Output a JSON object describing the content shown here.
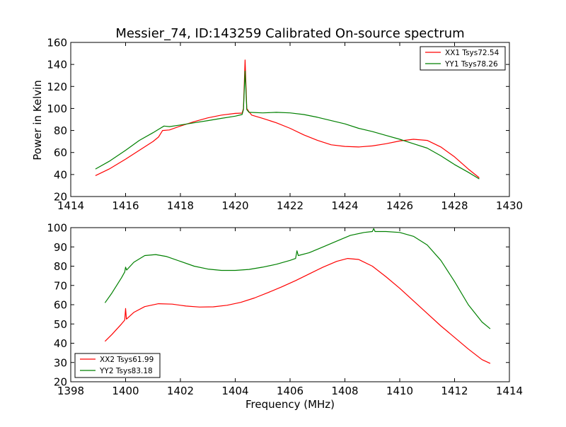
{
  "chart_data": [
    {
      "type": "line",
      "title": "Messier_74, ID:143259 Calibrated On-source spectrum",
      "xlabel": "",
      "ylabel": "Power in Kelvin",
      "xlim": [
        1414,
        1430
      ],
      "ylim": [
        20,
        160
      ],
      "xticks": [
        1414,
        1416,
        1418,
        1420,
        1422,
        1424,
        1426,
        1428,
        1430
      ],
      "yticks": [
        20,
        40,
        60,
        80,
        100,
        120,
        140,
        160
      ],
      "legend_position": "top-right",
      "series": [
        {
          "name": "XX1 Tsys72.54",
          "color": "#ff0000",
          "points": [
            [
              1414.9,
              39
            ],
            [
              1415.4,
              45
            ],
            [
              1416.0,
              54
            ],
            [
              1416.5,
              62
            ],
            [
              1417.0,
              70
            ],
            [
              1417.2,
              74
            ],
            [
              1417.35,
              80
            ],
            [
              1417.6,
              80.5
            ],
            [
              1418.0,
              84
            ],
            [
              1418.5,
              88
            ],
            [
              1419.0,
              91.5
            ],
            [
              1419.5,
              94
            ],
            [
              1420.0,
              95.5
            ],
            [
              1420.25,
              95.8
            ],
            [
              1420.3,
              100
            ],
            [
              1420.36,
              144
            ],
            [
              1420.42,
              100
            ],
            [
              1420.5,
              97
            ],
            [
              1420.6,
              94
            ],
            [
              1421.0,
              91
            ],
            [
              1421.5,
              87
            ],
            [
              1422.0,
              82
            ],
            [
              1422.5,
              76
            ],
            [
              1423.0,
              71
            ],
            [
              1423.5,
              67
            ],
            [
              1424.0,
              65.5
            ],
            [
              1424.5,
              65
            ],
            [
              1425.0,
              66
            ],
            [
              1425.5,
              68
            ],
            [
              1426.0,
              70.5
            ],
            [
              1426.5,
              72
            ],
            [
              1427.0,
              71
            ],
            [
              1427.5,
              65
            ],
            [
              1428.0,
              56
            ],
            [
              1428.5,
              45
            ],
            [
              1428.9,
              37
            ]
          ]
        },
        {
          "name": "YY1 Tsys78.26",
          "color": "#008000",
          "points": [
            [
              1414.9,
              45
            ],
            [
              1415.4,
              52
            ],
            [
              1416.0,
              62
            ],
            [
              1416.5,
              71
            ],
            [
              1417.0,
              78
            ],
            [
              1417.2,
              81
            ],
            [
              1417.4,
              84
            ],
            [
              1417.6,
              83.5
            ],
            [
              1418.0,
              85
            ],
            [
              1418.5,
              87
            ],
            [
              1419.0,
              89
            ],
            [
              1419.5,
              91
            ],
            [
              1420.0,
              93
            ],
            [
              1420.25,
              94.5
            ],
            [
              1420.3,
              99
            ],
            [
              1420.36,
              134
            ],
            [
              1420.42,
              99
            ],
            [
              1420.5,
              96.5
            ],
            [
              1421.0,
              96
            ],
            [
              1421.5,
              96.5
            ],
            [
              1422.0,
              96
            ],
            [
              1422.5,
              94.5
            ],
            [
              1423.0,
              92
            ],
            [
              1423.5,
              89
            ],
            [
              1424.0,
              86
            ],
            [
              1424.5,
              82
            ],
            [
              1425.0,
              79
            ],
            [
              1425.5,
              75.5
            ],
            [
              1426.0,
              72
            ],
            [
              1426.5,
              68
            ],
            [
              1427.0,
              64
            ],
            [
              1427.5,
              57
            ],
            [
              1428.0,
              49
            ],
            [
              1428.5,
              42
            ],
            [
              1428.9,
              36
            ]
          ]
        }
      ]
    },
    {
      "type": "line",
      "title": "",
      "xlabel": "Frequency (MHz)",
      "ylabel": "",
      "xlim": [
        1398,
        1414
      ],
      "ylim": [
        20,
        100
      ],
      "xticks": [
        1398,
        1400,
        1402,
        1404,
        1406,
        1408,
        1410,
        1412,
        1414
      ],
      "yticks": [
        20,
        30,
        40,
        50,
        60,
        70,
        80,
        90,
        100
      ],
      "legend_position": "bottom-left",
      "series": [
        {
          "name": "XX2 Tsys61.99",
          "color": "#ff0000",
          "points": [
            [
              1399.25,
              41
            ],
            [
              1399.5,
              44.5
            ],
            [
              1399.85,
              50
            ],
            [
              1399.97,
              52
            ],
            [
              1400.0,
              58
            ],
            [
              1400.03,
              52.5
            ],
            [
              1400.3,
              56
            ],
            [
              1400.7,
              59
            ],
            [
              1401.2,
              60.5
            ],
            [
              1401.7,
              60.3
            ],
            [
              1402.2,
              59.3
            ],
            [
              1402.7,
              58.8
            ],
            [
              1403.2,
              58.9
            ],
            [
              1403.7,
              59.7
            ],
            [
              1404.2,
              61.2
            ],
            [
              1404.7,
              63.5
            ],
            [
              1405.2,
              66.3
            ],
            [
              1405.7,
              69.3
            ],
            [
              1406.2,
              72.5
            ],
            [
              1406.7,
              76
            ],
            [
              1407.2,
              79.5
            ],
            [
              1407.7,
              82.5
            ],
            [
              1408.1,
              84
            ],
            [
              1408.5,
              83.5
            ],
            [
              1409.0,
              80
            ],
            [
              1409.5,
              74.5
            ],
            [
              1410.0,
              68.5
            ],
            [
              1410.5,
              62
            ],
            [
              1411.0,
              55.5
            ],
            [
              1411.5,
              49
            ],
            [
              1412.0,
              43
            ],
            [
              1412.5,
              37
            ],
            [
              1413.0,
              31.5
            ],
            [
              1413.3,
              29.5
            ]
          ]
        },
        {
          "name": "YY2 Tsys83.18",
          "color": "#008000",
          "points": [
            [
              1399.25,
              61
            ],
            [
              1399.5,
              66
            ],
            [
              1399.85,
              74
            ],
            [
              1399.97,
              77
            ],
            [
              1400.0,
              79.5
            ],
            [
              1400.04,
              78
            ],
            [
              1400.3,
              82
            ],
            [
              1400.7,
              85.5
            ],
            [
              1401.1,
              86
            ],
            [
              1401.5,
              85
            ],
            [
              1402.0,
              82.5
            ],
            [
              1402.5,
              80
            ],
            [
              1403.0,
              78.5
            ],
            [
              1403.5,
              77.8
            ],
            [
              1404.0,
              77.8
            ],
            [
              1404.5,
              78.3
            ],
            [
              1405.0,
              79.5
            ],
            [
              1405.5,
              81
            ],
            [
              1406.0,
              83
            ],
            [
              1406.2,
              84
            ],
            [
              1406.25,
              88
            ],
            [
              1406.3,
              85.5
            ],
            [
              1406.7,
              87
            ],
            [
              1407.2,
              90
            ],
            [
              1407.7,
              93
            ],
            [
              1408.2,
              96
            ],
            [
              1408.7,
              97.5
            ],
            [
              1409.0,
              98
            ],
            [
              1409.05,
              99.5
            ],
            [
              1409.1,
              98
            ],
            [
              1409.5,
              98
            ],
            [
              1410.0,
              97.5
            ],
            [
              1410.5,
              95.5
            ],
            [
              1411.0,
              91
            ],
            [
              1411.5,
              83
            ],
            [
              1412.0,
              72
            ],
            [
              1412.5,
              60
            ],
            [
              1413.0,
              51
            ],
            [
              1413.3,
              47.5
            ]
          ]
        }
      ]
    }
  ]
}
